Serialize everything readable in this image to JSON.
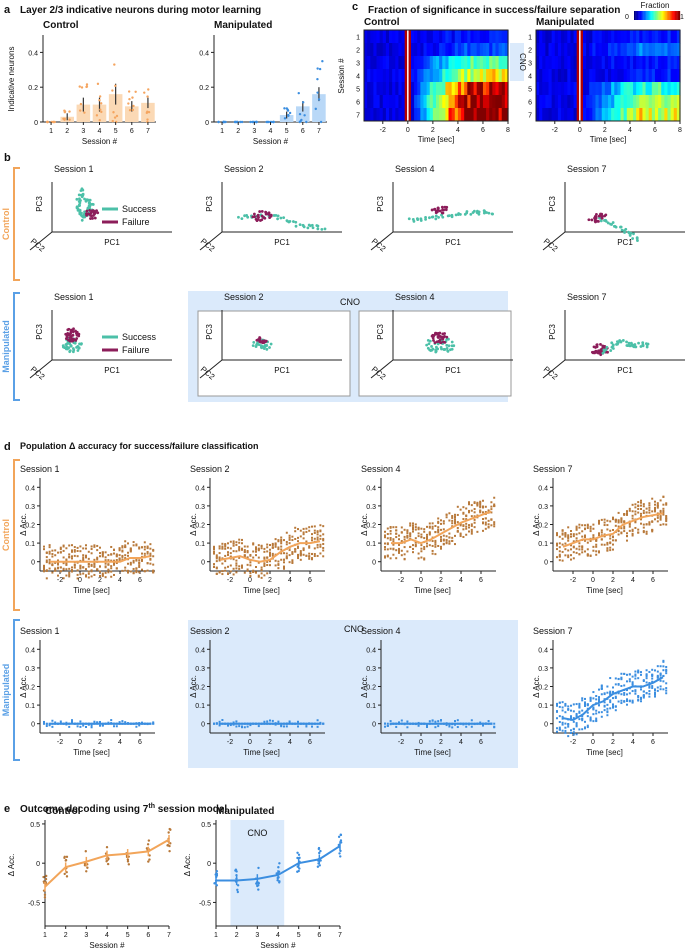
{
  "figure": {
    "panels": {
      "a": {
        "letter": "a",
        "title": "Layer 2/3 indicative neurons during motor learning",
        "ylabel": "Indicative neurons",
        "xlabel": "Session #",
        "yticks": [
          "0",
          "0.2",
          "0.4"
        ],
        "groups": [
          "Control",
          "Manipulated"
        ]
      },
      "b": {
        "letter": "b",
        "group_labels": [
          "Control",
          "Manipulated"
        ],
        "legend": [
          "Success",
          "Failure"
        ],
        "sessions": [
          "Session 1",
          "Session 2",
          "Session 4",
          "Session 7"
        ],
        "axes": {
          "pc1": "PC1",
          "pc2": "PC2",
          "pc3": "PC3"
        },
        "cno": "CNO"
      },
      "c": {
        "letter": "c",
        "title": "Fraction of significance in success/failure separation",
        "groups": [
          "Control",
          "Manipulated"
        ],
        "ylabel": "Session #",
        "xlabel": "Time [sec]",
        "rows": [
          "1",
          "2",
          "3",
          "4",
          "5",
          "6",
          "7"
        ],
        "xticks": [
          "-2",
          "0",
          "2",
          "4",
          "6",
          "8"
        ],
        "colorbar_label": "Fraction",
        "colorbar_ticks": [
          "0",
          "1"
        ],
        "cno": "CNO"
      },
      "d": {
        "letter": "d",
        "title": "Population Δ accuracy for success/failure classification",
        "group_labels": [
          "Control",
          "Manipulated"
        ],
        "sessions": [
          "Session 1",
          "Session 2",
          "Session 4",
          "Session 7"
        ],
        "ylabel": "Δ Acc.",
        "xlabel": "Time [sec]",
        "yticks": [
          "0",
          "0.1",
          "0.2",
          "0.3",
          "0.4"
        ],
        "xticks": [
          "-2",
          "0",
          "2",
          "4",
          "6"
        ],
        "cno": "CNO"
      },
      "e": {
        "letter": "e",
        "title": "Outcome decoding using 7",
        "title_sup": "th",
        "title_end": " session model",
        "groups": [
          "Control",
          "Manipulated"
        ],
        "ylabel": "Δ Acc.",
        "xlabel": "Session #",
        "yticks": [
          "0.5",
          "0",
          "-0.5"
        ],
        "xticks": [
          "1",
          "2",
          "3",
          "4",
          "5",
          "6",
          "7"
        ],
        "cno": "CNO"
      }
    },
    "colors": {
      "control": "#f2a55a",
      "control_bar": "#fbd9b5",
      "control_dot": "#b8793a",
      "manipulated": "#3b8ee0",
      "manipulated_bar": "#b9d8f7",
      "cno_fill": "#dbeafb",
      "success": "#4cc0a8",
      "failure": "#8c1d5a"
    }
  },
  "chart_data": [
    {
      "id": "a-control",
      "type": "bar",
      "title": "Control",
      "xlabel": "Session #",
      "ylabel": "Indicative neurons",
      "categories": [
        "1",
        "2",
        "3",
        "4",
        "5",
        "6",
        "7"
      ],
      "values": [
        0.0,
        0.03,
        0.1,
        0.1,
        0.16,
        0.09,
        0.11
      ],
      "errors": [
        0.0,
        0.02,
        0.04,
        0.04,
        0.06,
        0.03,
        0.03
      ],
      "ylim": [
        0,
        0.5
      ]
    },
    {
      "id": "a-manipulated",
      "type": "bar",
      "title": "Manipulated",
      "xlabel": "Session #",
      "ylabel": "",
      "categories": [
        "1",
        "2",
        "3",
        "4",
        "5",
        "6",
        "7"
      ],
      "values": [
        0.0,
        0.0,
        0.0,
        0.0,
        0.04,
        0.09,
        0.16
      ],
      "errors": [
        0.0,
        0.0,
        0.0,
        0.0,
        0.02,
        0.03,
        0.04
      ],
      "ylim": [
        0,
        0.5
      ]
    },
    {
      "id": "c-control",
      "type": "heatmap",
      "title": "Control",
      "xlabel": "Time [sec]",
      "ylabel": "Session #",
      "rows": [
        "1",
        "2",
        "3",
        "4",
        "5",
        "6",
        "7"
      ],
      "xlim": [
        -3.5,
        8
      ],
      "peak_fraction": [
        0.05,
        0.1,
        0.4,
        0.55,
        0.85,
        0.95,
        1.0
      ]
    },
    {
      "id": "c-manipulated",
      "type": "heatmap",
      "title": "Manipulated",
      "xlabel": "Time [sec]",
      "ylabel": "",
      "rows": [
        "1",
        "2",
        "3",
        "4",
        "5",
        "6",
        "7"
      ],
      "xlim": [
        -3.5,
        8
      ],
      "peak_fraction": [
        0.05,
        0.15,
        0.05,
        0.05,
        0.35,
        0.45,
        0.55
      ]
    },
    {
      "id": "d-control-s1",
      "type": "line",
      "x": [
        -3,
        -2,
        -1,
        0,
        1,
        2,
        3,
        4,
        5,
        6,
        7
      ],
      "y": [
        0,
        0,
        0,
        0,
        0,
        0,
        0,
        0,
        0.02,
        0.02,
        0.03
      ],
      "ylim": [
        -0.05,
        0.45
      ]
    },
    {
      "id": "d-control-s2",
      "type": "line",
      "x": [
        -3,
        -2,
        -1,
        0,
        1,
        2,
        3,
        4,
        5,
        6,
        7
      ],
      "y": [
        0.01,
        0.02,
        0.03,
        0.01,
        0.0,
        0.01,
        0.05,
        0.08,
        0.1,
        0.1,
        0.11
      ],
      "ylim": [
        -0.05,
        0.45
      ]
    },
    {
      "id": "d-control-s4",
      "type": "line",
      "x": [
        -3,
        -2,
        -1,
        0,
        1,
        2,
        3,
        4,
        5,
        6,
        7
      ],
      "y": [
        0.1,
        0.1,
        0.12,
        0.1,
        0.12,
        0.15,
        0.18,
        0.21,
        0.23,
        0.25,
        0.27
      ],
      "ylim": [
        -0.05,
        0.45
      ]
    },
    {
      "id": "d-control-s7",
      "type": "line",
      "x": [
        -3,
        -2,
        -1,
        0,
        1,
        2,
        3,
        4,
        5,
        6,
        7
      ],
      "y": [
        0.08,
        0.1,
        0.12,
        0.12,
        0.14,
        0.15,
        0.2,
        0.22,
        0.24,
        0.25,
        0.26
      ],
      "ylim": [
        -0.05,
        0.45
      ]
    },
    {
      "id": "d-manipulated-s1",
      "type": "line",
      "x": [
        -3,
        -2,
        -1,
        0,
        1,
        2,
        3,
        4,
        5,
        6,
        7
      ],
      "y": [
        0,
        0,
        0,
        0,
        0,
        0,
        0,
        0,
        0,
        0,
        0
      ],
      "ylim": [
        -0.05,
        0.45
      ]
    },
    {
      "id": "d-manipulated-s2",
      "type": "line",
      "x": [
        -3,
        -2,
        -1,
        0,
        1,
        2,
        3,
        4,
        5,
        6,
        7
      ],
      "y": [
        0,
        0,
        0,
        0,
        0,
        0,
        0,
        0,
        0,
        0,
        0
      ],
      "ylim": [
        -0.05,
        0.45
      ]
    },
    {
      "id": "d-manipulated-s4",
      "type": "line",
      "x": [
        -3,
        -2,
        -1,
        0,
        1,
        2,
        3,
        4,
        5,
        6,
        7
      ],
      "y": [
        0,
        0,
        0,
        0,
        0,
        0,
        0,
        0,
        0,
        0,
        0
      ],
      "ylim": [
        -0.05,
        0.45
      ]
    },
    {
      "id": "d-manipulated-s7",
      "type": "line",
      "x": [
        -3,
        -2,
        -1,
        0,
        1,
        2,
        3,
        4,
        5,
        6,
        7
      ],
      "y": [
        0.03,
        0.02,
        0.05,
        0.1,
        0.12,
        0.16,
        0.18,
        0.2,
        0.2,
        0.22,
        0.25
      ],
      "ylim": [
        -0.05,
        0.45
      ]
    },
    {
      "id": "e-control",
      "type": "line",
      "title": "Control",
      "xlabel": "Session #",
      "ylabel": "Δ Acc.",
      "x": [
        1,
        2,
        3,
        4,
        5,
        6,
        7
      ],
      "y": [
        -0.3,
        -0.05,
        0.02,
        0.1,
        0.12,
        0.15,
        0.3
      ],
      "ylim": [
        -0.8,
        0.55
      ]
    },
    {
      "id": "e-manipulated",
      "type": "line",
      "title": "Manipulated",
      "xlabel": "Session #",
      "ylabel": "",
      "x": [
        1,
        2,
        3,
        4,
        5,
        6,
        7
      ],
      "y": [
        -0.22,
        -0.22,
        -0.2,
        -0.15,
        0.0,
        0.05,
        0.22
      ],
      "ylim": [
        -0.8,
        0.55
      ],
      "cno_range": [
        1.7,
        4.3
      ]
    }
  ]
}
